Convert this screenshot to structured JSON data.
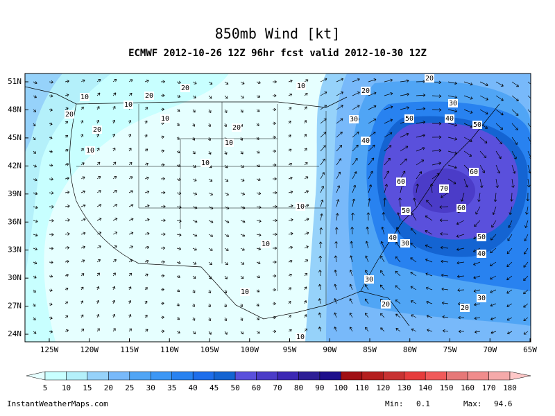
{
  "header": {
    "title": "850mb Wind [kt]",
    "subtitle": "ECMWF 2012-10-26 12Z 96hr fcst valid 2012-10-30 12Z"
  },
  "map": {
    "lat_labels": [
      "51N",
      "48N",
      "45N",
      "42N",
      "39N",
      "36N",
      "33N",
      "30N",
      "27N",
      "24N"
    ],
    "lon_labels": [
      "125W",
      "120W",
      "115W",
      "110W",
      "105W",
      "100W",
      "95W",
      "90W",
      "85W",
      "80W",
      "75W",
      "70W",
      "65W"
    ],
    "contour_labels": [
      20,
      10,
      20,
      10,
      20,
      10,
      20,
      20,
      10,
      10,
      10,
      10,
      20,
      20,
      30,
      30,
      50,
      40,
      50,
      40,
      60,
      60,
      70,
      60,
      50,
      10,
      40,
      30,
      50,
      10,
      40,
      30,
      10,
      30,
      20,
      20,
      10
    ]
  },
  "legend": {
    "levels": [
      5,
      10,
      15,
      20,
      25,
      30,
      35,
      40,
      45,
      50,
      60,
      70,
      80,
      90,
      100,
      110,
      120,
      130,
      140,
      150,
      160,
      170,
      180
    ],
    "colors": [
      "#e6ffff",
      "#c8ffff",
      "#b4f0fa",
      "#96d2fa",
      "#78b9fa",
      "#50a5f5",
      "#3c97f5",
      "#2882f0",
      "#1e6eeb",
      "#1464d2",
      "#5a50dc",
      "#4b3cc8",
      "#3c28b4",
      "#2d1e96",
      "#1e0f8c",
      "#a00f14",
      "#b41e1e",
      "#c83232",
      "#e63c3c",
      "#f05a5a",
      "#e67878",
      "#f08c8c",
      "#f5aaaa",
      "#ffc8c8"
    ]
  },
  "footer": {
    "source": "InstantWeatherMaps.com",
    "min_label": "Min:",
    "min_value": 0.1,
    "max_label": "Max:",
    "max_value": 94.6
  }
}
